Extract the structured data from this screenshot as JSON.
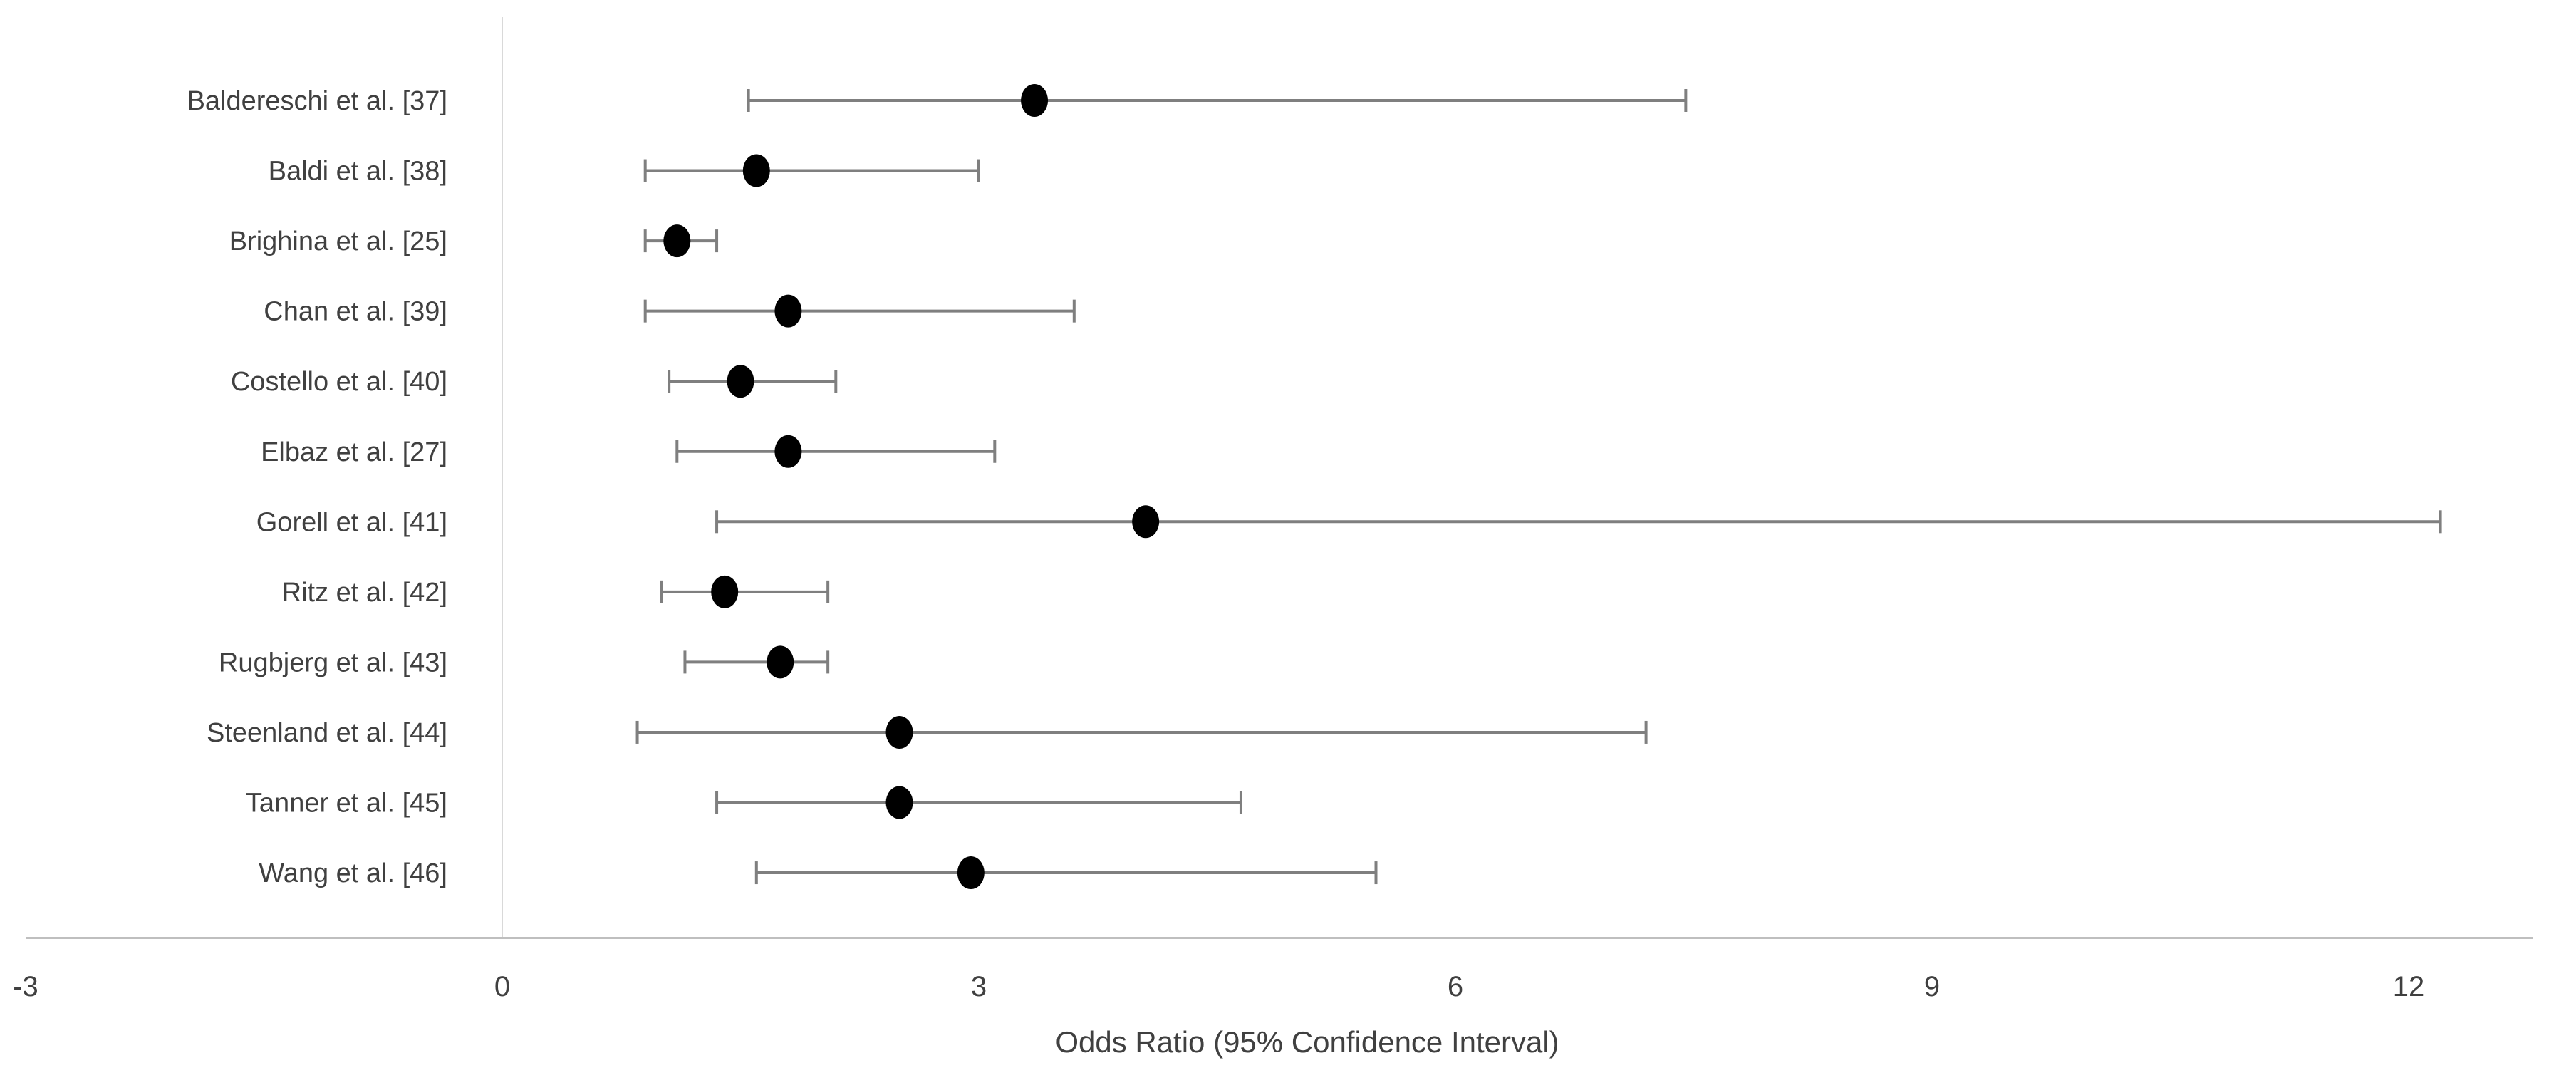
{
  "chart_data": {
    "type": "scatter",
    "subtype": "forest-plot",
    "title": "",
    "xlabel": "Odds Ratio (95% Confidence Interval)",
    "ylabel": "",
    "xlim": [
      -3,
      12.8
    ],
    "xticks": [
      "-3",
      "0",
      "3",
      "6",
      "9",
      "12"
    ],
    "xtick_values": [
      -3,
      0,
      3,
      6,
      9,
      12
    ],
    "zero_reference_line": true,
    "grid": false,
    "legend": false,
    "categories": [
      "Baldereschi et al. [37]",
      "Baldi et al. [38]",
      "Brighina et al. [25]",
      "Chan et al. [39]",
      "Costello et al. [40]",
      "Elbaz et al. [27]",
      "Gorell et al. [41]",
      "Ritz et al. [42]",
      "Rugbjerg et al. [43]",
      "Steenland et al. [44]",
      "Tanner et al. [45]",
      "Wang et al. [46]"
    ],
    "series": [
      {
        "name": "Odds Ratio (95% CI)",
        "odds_ratio": [
          3.35,
          1.6,
          1.1,
          1.8,
          1.5,
          1.8,
          4.05,
          1.4,
          1.75,
          2.5,
          2.5,
          2.95
        ],
        "ci_low": [
          1.55,
          0.9,
          0.9,
          0.9,
          1.05,
          1.1,
          1.35,
          1.0,
          1.15,
          0.85,
          1.35,
          1.6
        ],
        "ci_high": [
          7.45,
          3.0,
          1.35,
          3.6,
          2.1,
          3.1,
          12.2,
          2.05,
          2.05,
          7.2,
          4.65,
          5.5
        ]
      }
    ]
  },
  "styles": {
    "background": "#ffffff",
    "marker_color": "#000000",
    "error_bar_color": "#7f7f7f",
    "axis_line_color": "#bfbfbf",
    "zero_line_color": "#d9d9d9",
    "text_color": "#404040"
  }
}
